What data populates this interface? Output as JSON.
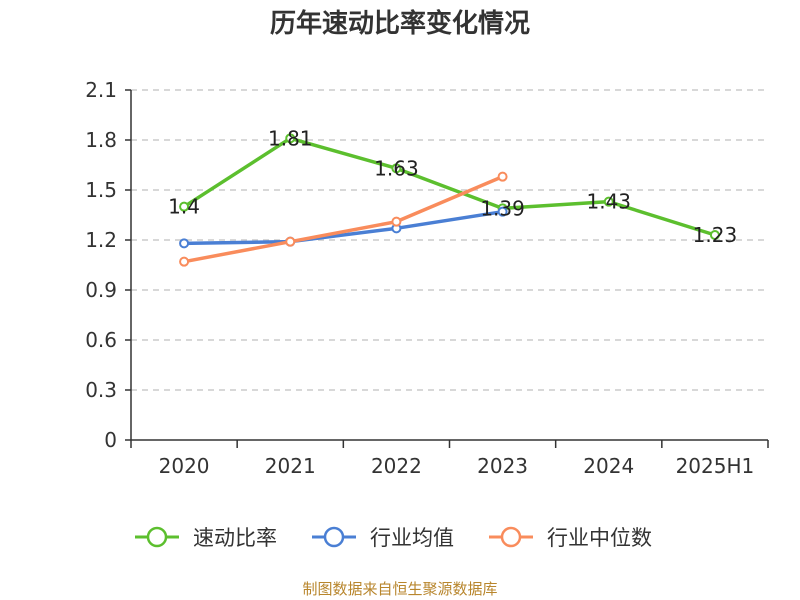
{
  "chart_data": {
    "type": "line",
    "title": "历年速动比率变化情况",
    "categories": [
      "2020",
      "2021",
      "2022",
      "2023",
      "2024",
      "2025H1"
    ],
    "y_ticks": [
      "0",
      "0.3",
      "0.6",
      "0.9",
      "1.2",
      "1.5",
      "1.8",
      "2.1"
    ],
    "ylim": [
      0,
      2.1
    ],
    "grid": true,
    "legend_position": "bottom",
    "series": [
      {
        "name": "速动比率",
        "color": "#5cbf2e",
        "values": [
          1.4,
          1.81,
          1.63,
          1.39,
          1.43,
          1.23
        ],
        "labels": [
          "1.4",
          "1.81",
          "1.63",
          "1.39",
          "1.43",
          "1.23"
        ]
      },
      {
        "name": "行业均值",
        "color": "#4a7fd4",
        "values": [
          1.18,
          1.19,
          1.27,
          1.37,
          null,
          null
        ]
      },
      {
        "name": "行业中位数",
        "color": "#f98c5c",
        "values": [
          1.07,
          1.19,
          1.31,
          1.58,
          null,
          null
        ]
      }
    ]
  },
  "source_text": "制图数据来自恒生聚源数据库",
  "source_color": "#b8862d"
}
